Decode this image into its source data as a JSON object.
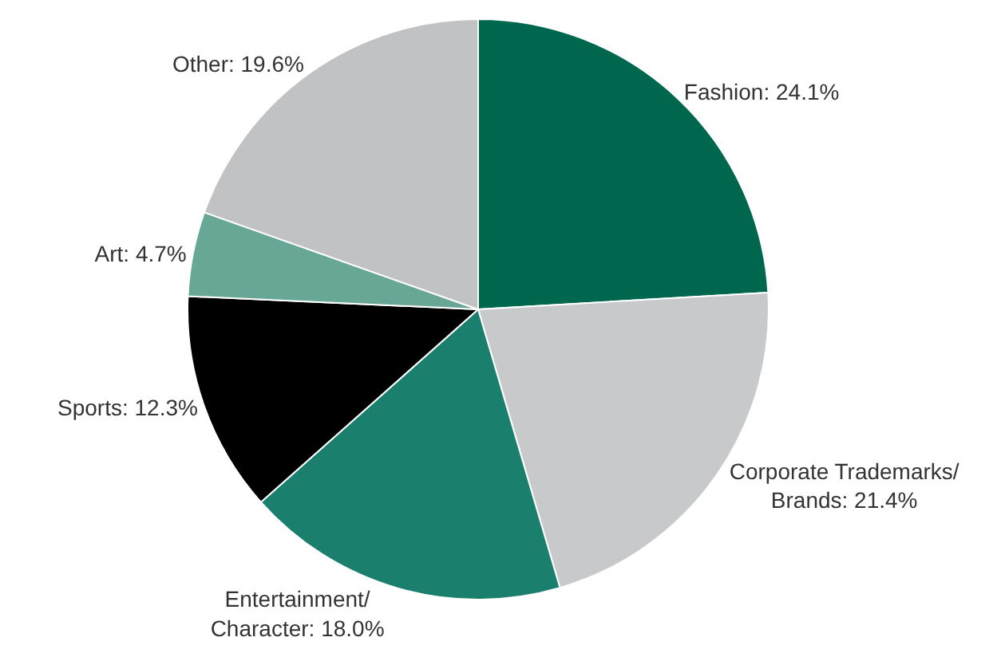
{
  "chart_data": {
    "type": "pie",
    "categories": [
      "Fashion",
      "Corporate Trademarks/Brands",
      "Entertainment/Character",
      "Sports",
      "Art",
      "Other"
    ],
    "values": [
      24.1,
      21.4,
      18.0,
      12.3,
      4.7,
      19.6
    ],
    "value_labels": [
      "24.1%",
      "21.4%",
      "18.0%",
      "12.3%",
      "4.7%",
      "19.6%"
    ],
    "colors": [
      "#00674f",
      "#c8c9cb",
      "#1b7f6d",
      "#000000",
      "#68a695",
      "#c1c2c4"
    ],
    "legend": false
  }
}
